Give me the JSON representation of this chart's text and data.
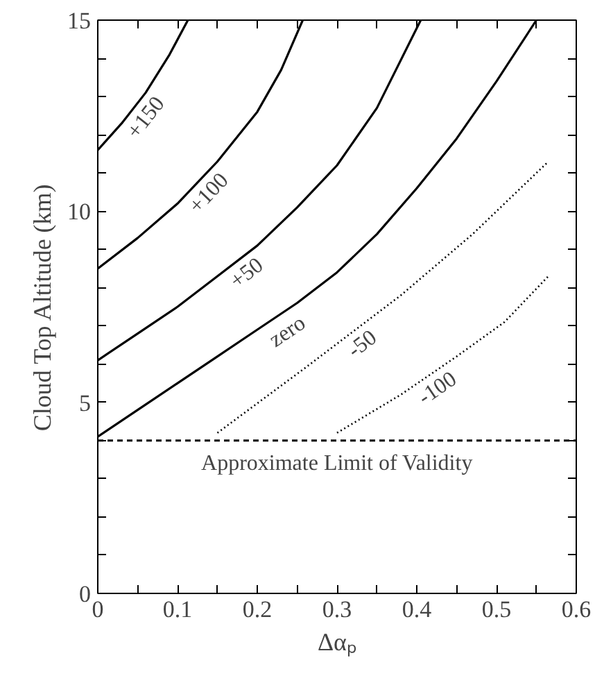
{
  "chart_data": {
    "type": "line",
    "xlabel": "Δαₚ",
    "ylabel": "Cloud Top Altitude (km)",
    "xlim": [
      0,
      0.6
    ],
    "ylim": [
      0,
      15
    ],
    "xticks": [
      0,
      {
        "value": 0.05,
        "label": null
      },
      0.1,
      {
        "value": 0.15,
        "label": null
      },
      0.2,
      {
        "value": 0.25,
        "label": null
      },
      0.3,
      {
        "value": 0.35,
        "label": null
      },
      0.4,
      {
        "value": 0.45,
        "label": null
      },
      0.5,
      {
        "value": 0.55,
        "label": null
      },
      0.6
    ],
    "yticks": [
      0,
      {
        "value": 1,
        "label": null
      },
      {
        "value": 2,
        "label": null
      },
      {
        "value": 3,
        "label": null
      },
      {
        "value": 4,
        "label": null
      },
      5,
      {
        "value": 6,
        "label": null
      },
      {
        "value": 7,
        "label": null
      },
      {
        "value": 8,
        "label": null
      },
      {
        "value": 9,
        "label": null
      },
      10,
      {
        "value": 11,
        "label": null
      },
      {
        "value": 12,
        "label": null
      },
      {
        "value": 13,
        "label": null
      },
      {
        "value": 14,
        "label": null
      },
      15
    ],
    "grid": false,
    "marker": "none",
    "series": [
      {
        "name": "+150",
        "color": "#000000",
        "line_style": "solid",
        "x": [
          0,
          0.03,
          0.06,
          0.09,
          0.113
        ],
        "values": [
          11.6,
          12.3,
          13.1,
          14.1,
          15
        ]
      },
      {
        "name": "+100",
        "color": "#000000",
        "line_style": "solid",
        "x": [
          0,
          0.05,
          0.1,
          0.15,
          0.2,
          0.23,
          0.257
        ],
        "values": [
          8.5,
          9.3,
          10.2,
          11.3,
          12.6,
          13.7,
          15
        ]
      },
      {
        "name": "+50",
        "color": "#000000",
        "line_style": "solid",
        "x": [
          0,
          0.05,
          0.1,
          0.15,
          0.2,
          0.25,
          0.3,
          0.35,
          0.405
        ],
        "values": [
          6.1,
          6.8,
          7.5,
          8.3,
          9.1,
          10.1,
          11.2,
          12.7,
          15
        ]
      },
      {
        "name": "zero",
        "color": "#000000",
        "line_style": "solid",
        "x": [
          0,
          0.05,
          0.1,
          0.15,
          0.2,
          0.25,
          0.3,
          0.35,
          0.4,
          0.45,
          0.5,
          0.55
        ],
        "values": [
          4.1,
          4.8,
          5.5,
          6.2,
          6.9,
          7.6,
          8.4,
          9.4,
          10.6,
          11.9,
          13.4,
          15
        ]
      },
      {
        "name": "-50",
        "color": "#000000",
        "line_style": "dotted",
        "x": [
          0.15,
          0.26,
          0.38,
          0.47,
          0.565
        ],
        "values": [
          4.2,
          5.9,
          7.8,
          9.4,
          11.3
        ]
      },
      {
        "name": "-100",
        "color": "#000000",
        "line_style": "dotted",
        "x": [
          0.3,
          0.38,
          0.45,
          0.51,
          0.565
        ],
        "values": [
          4.2,
          5.2,
          6.2,
          7.1,
          8.3
        ]
      }
    ],
    "ref_lines": [
      {
        "axis": "y",
        "value": 4.0,
        "label": "Approximate Limit of Validity",
        "color": "#000000",
        "line_style": "dashed"
      }
    ]
  }
}
